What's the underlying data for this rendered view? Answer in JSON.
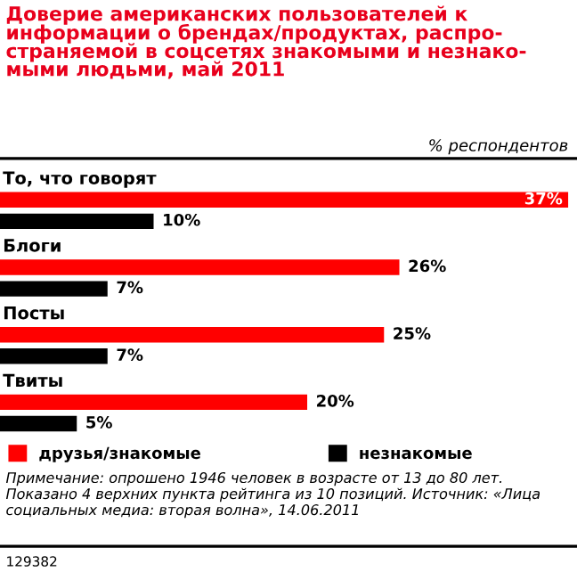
{
  "chart_data": {
    "type": "bar",
    "orientation": "horizontal",
    "title": "Доверие американских пользователей к\nинформации о брендах/продуктах, распро-\nстраняемой в соцсетях знакомыми и незнако-\nмыми людьми, май 2011",
    "subtitle": "% респондентов",
    "categories": [
      "То, что говорят",
      "Блоги",
      "Посты",
      "Твиты"
    ],
    "series": [
      {
        "name": "друзья/знакомые",
        "color": "#ff0000",
        "values": [
          37,
          26,
          25,
          20
        ],
        "value_labels": [
          "37%",
          "26%",
          "25%",
          "20%"
        ]
      },
      {
        "name": "незнакомые",
        "color": "#000000",
        "values": [
          10,
          7,
          7,
          5
        ],
        "value_labels": [
          "10%",
          "7%",
          "7%",
          "5%"
        ]
      }
    ],
    "legend": "bottom",
    "annotations": [
      "Примечание: опрошено 1946 человек в возрасте от 13 до 80 лет. Показано 4 верхних пункта рейтинга из 10 позиций. Источник: «Лица социальных медиа: вторая волна», 14.06.2011",
      "129382"
    ]
  }
}
